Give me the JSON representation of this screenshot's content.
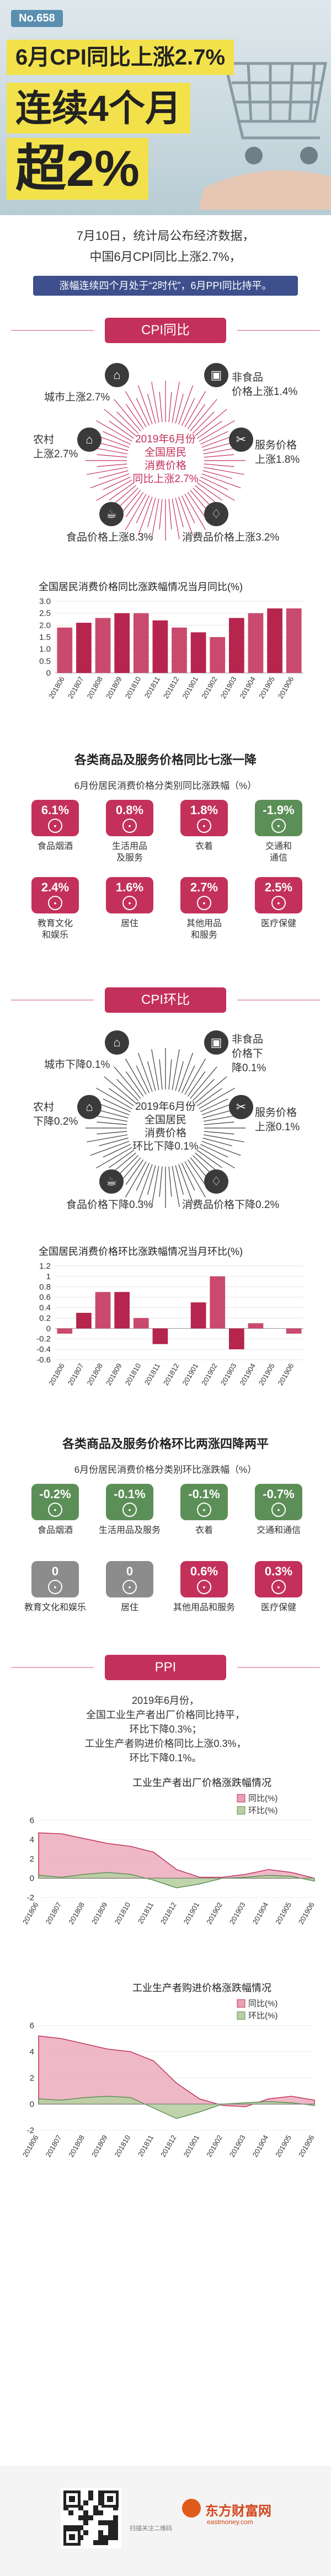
{
  "header": {
    "issue": "No.658",
    "headline_1": "6月CPI同比上涨2.7%",
    "headline_2": "连续4个月",
    "headline_3": "超2%"
  },
  "intro": {
    "line1": "7月10日，统计局公布经济数据，",
    "line2": "中国6月CPI同比上涨2.7%，",
    "line3": "涨幅连续四个月处于“2时代”，6月PPI同比持平。"
  },
  "cpi_yoy": {
    "banner": "CPI同比",
    "center": [
      "2019年6月份",
      "全国居民",
      "消费价格",
      "同比上涨2.7%"
    ],
    "items": {
      "city": "城市上涨2.7%",
      "rural": [
        "农村",
        "上涨2.7%"
      ],
      "food": "食品价格上涨8.3%",
      "nonfood": [
        "非食品",
        "价格上涨1.4%"
      ],
      "service": [
        "服务价格",
        "上涨1.8%"
      ],
      "consumer": "消费品价格上涨3.2%"
    },
    "chart_title": "全国居民消费价格同比涨跌幅情况当月同比(%)",
    "categories_title": "各类商品及服务价格同比七涨一降",
    "categories_subtitle": "6月份居民消费价格分类别同比涨跌幅（%）",
    "tiles": [
      {
        "value": "6.1%",
        "label": "食品烟酒",
        "color": "#c3315b"
      },
      {
        "value": "0.8%",
        "label": "生活用品\n及服务",
        "color": "#c3315b"
      },
      {
        "value": "1.8%",
        "label": "衣着",
        "color": "#c3315b"
      },
      {
        "value": "-1.9%",
        "label": "交通和\n通信",
        "color": "#5c8f57"
      },
      {
        "value": "2.4%",
        "label": "教育文化\n和娱乐",
        "color": "#c3315b"
      },
      {
        "value": "1.6%",
        "label": "居住",
        "color": "#c3315b"
      },
      {
        "value": "2.7%",
        "label": "其他用品\n和服务",
        "color": "#c3315b"
      },
      {
        "value": "2.5%",
        "label": "医疗保健",
        "color": "#c3315b"
      }
    ]
  },
  "cpi_mom": {
    "banner": "CPI环比",
    "center": [
      "2019年6月份",
      "全国居民",
      "消费价格",
      "环比下降0.1%"
    ],
    "items": {
      "city": "城市下降0.1%",
      "rural": [
        "农村",
        "下降0.2%"
      ],
      "food": "食品价格下降0.3%",
      "nonfood": [
        "非食品",
        "价格下",
        "降0.1%"
      ],
      "service": [
        "服务价格",
        "上涨0.1%"
      ],
      "consumer": "消费品价格下降0.2%"
    },
    "chart_title": "全国居民消费价格环比涨跌幅情况当月环比(%)",
    "categories_title": "各类商品及服务价格环比两涨四降两平",
    "categories_subtitle": "6月份居民消费价格分类别环比涨跌幅（%）",
    "tiles": [
      {
        "value": "-0.2%",
        "label": "食品烟酒",
        "color": "#5c8f57"
      },
      {
        "value": "-0.1%",
        "label": "生活用品及服务",
        "color": "#5c8f57"
      },
      {
        "value": "-0.1%",
        "label": "衣着",
        "color": "#5c8f57"
      },
      {
        "value": "-0.7%",
        "label": "交通和通信",
        "color": "#5c8f57"
      },
      {
        "value": "0",
        "label": "教育文化和娱乐",
        "color": "#8c8c8c"
      },
      {
        "value": "0",
        "label": "居住",
        "color": "#8c8c8c"
      },
      {
        "value": "0.6%",
        "label": "其他用品和服务",
        "color": "#c3315b"
      },
      {
        "value": "0.3%",
        "label": "医疗保健",
        "color": "#c3315b"
      }
    ]
  },
  "ppi": {
    "banner": "PPI",
    "text": [
      "2019年6月份，",
      "全国工业生产者出厂价格同比持平，",
      "环比下降0.3%；",
      "工业生产者购进价格同比上涨0.3%，",
      "环比下降0.1%。"
    ]
  },
  "footer": {
    "qr_caption": "扫描关注二维码",
    "brand": "东方财富网",
    "brand_url": "eastmoney.com"
  },
  "colors": {
    "accent": "#c3315b",
    "down": "#5c8f57",
    "flat": "#8c8c8c",
    "navy": "#3d4f8c",
    "highlight": "#f2e14b"
  },
  "chart_data": [
    {
      "type": "bar",
      "title": "全国居民消费价格同比涨跌幅情况当月同比(%)",
      "categories": [
        "2018.06",
        "2018.07",
        "2018.08",
        "2018.09",
        "2018.10",
        "2018.11",
        "2018.12",
        "2019.01",
        "2019.02",
        "2019.03",
        "2019.04",
        "2019.05",
        "2019.06"
      ],
      "values": [
        1.9,
        2.1,
        2.3,
        2.5,
        2.5,
        2.2,
        1.9,
        1.7,
        1.5,
        2.3,
        2.5,
        2.7,
        2.7
      ],
      "ylim": [
        0,
        3.0
      ],
      "yticks": [
        "3.0",
        "2.5",
        "2.0",
        "1.5",
        "1.0",
        "0.5",
        "0"
      ]
    },
    {
      "type": "bar",
      "title": "全国居民消费价格环比涨跌幅情况当月环比(%)",
      "categories": [
        "2018.06",
        "2018.07",
        "2018.08",
        "2018.09",
        "2018.10",
        "2018.11",
        "2018.12",
        "2019.01",
        "2019.02",
        "2019.03",
        "2019.04",
        "2019.05",
        "2019.06"
      ],
      "values": [
        -0.1,
        0.3,
        0.7,
        0.7,
        0.2,
        -0.3,
        0.0,
        0.5,
        1.0,
        -0.4,
        0.1,
        0.0,
        -0.1
      ],
      "ylim": [
        -0.6,
        1.2
      ],
      "yticks": [
        "1.2",
        "1",
        "0.8",
        "0.6",
        "0.4",
        "0.2",
        "0",
        "-0.2",
        "-0.4",
        "-0.6"
      ]
    },
    {
      "type": "area",
      "title": "工业生产者出厂价格涨跌幅情况",
      "categories": [
        "2018.06",
        "2018.07",
        "2018.08",
        "2018.09",
        "2018.10",
        "2018.11",
        "2018.12",
        "2019.01",
        "2019.02",
        "2019.03",
        "2019.04",
        "2019.05",
        "2019.06"
      ],
      "series": [
        {
          "name": "同比(%)",
          "values": [
            4.7,
            4.6,
            4.1,
            3.6,
            3.3,
            2.7,
            0.9,
            0.1,
            0.1,
            0.4,
            0.9,
            0.6,
            0.0
          ]
        },
        {
          "name": "环比(%)",
          "values": [
            0.3,
            0.1,
            0.4,
            0.6,
            0.4,
            -0.2,
            -1.0,
            -0.6,
            0.0,
            0.1,
            0.3,
            0.2,
            -0.3
          ]
        }
      ],
      "ylim": [
        -2,
        6
      ],
      "yticks": [
        "6",
        "4",
        "2",
        "0",
        "-2"
      ],
      "legend": "top-right"
    },
    {
      "type": "area",
      "title": "工业生产者购进价格涨跌幅情况",
      "categories": [
        "2018.06",
        "2018.07",
        "2018.08",
        "2018.09",
        "2018.10",
        "2018.11",
        "2018.12",
        "2019.01",
        "2019.02",
        "2019.03",
        "2019.04",
        "2019.05",
        "2019.06"
      ],
      "series": [
        {
          "name": "同比(%)",
          "values": [
            5.2,
            5.0,
            4.6,
            4.2,
            4.0,
            3.3,
            1.6,
            0.4,
            -0.1,
            -0.2,
            0.4,
            0.6,
            0.3
          ]
        },
        {
          "name": "环比(%)",
          "values": [
            0.4,
            0.3,
            0.5,
            0.6,
            0.5,
            -0.3,
            -1.1,
            -0.6,
            0.0,
            0.1,
            0.2,
            0.1,
            -0.1
          ]
        }
      ],
      "ylim": [
        -2,
        6
      ],
      "yticks": [
        "6",
        "4",
        "2",
        "0",
        "-2"
      ],
      "legend": "top-right"
    }
  ]
}
